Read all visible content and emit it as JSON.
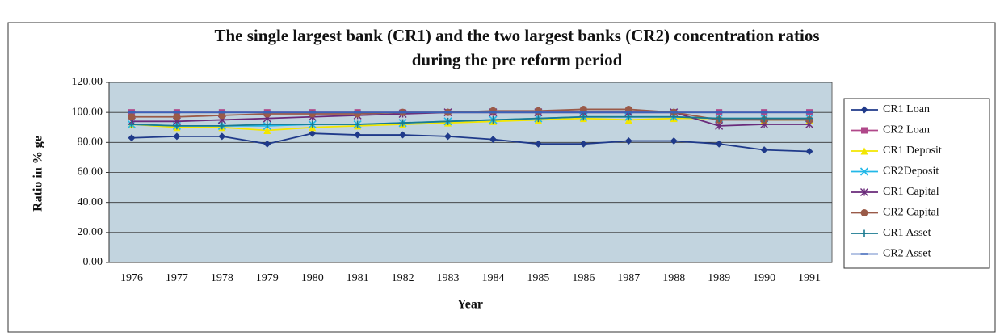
{
  "chart_data": {
    "type": "line",
    "title": "The single largest bank (CR1) and the two largest banks (CR2) concentration ratios",
    "subtitle": "during the pre reform period",
    "x_label": "Year",
    "y_label": "Ratio in % ge",
    "categories": [
      "1976",
      "1977",
      "1978",
      "1979",
      "1980",
      "1981",
      "1982",
      "1983",
      "1984",
      "1985",
      "1986",
      "1987",
      "1988",
      "1989",
      "1990",
      "1991"
    ],
    "ylim": [
      0,
      120
    ],
    "yticks": [
      {
        "value": 0,
        "label": "0.00"
      },
      {
        "value": 20,
        "label": "20.00"
      },
      {
        "value": 40,
        "label": "40.00"
      },
      {
        "value": 60,
        "label": "60.00"
      },
      {
        "value": 80,
        "label": "80.00"
      },
      {
        "value": 100,
        "label": "100.00"
      },
      {
        "value": 120,
        "label": "120.00"
      }
    ],
    "grid": true,
    "legend": "right",
    "series": [
      {
        "name": "CR1 Loan",
        "color": "#1f3a8a",
        "marker": "diamond",
        "values": [
          83,
          84,
          84,
          79,
          86,
          85,
          85,
          84,
          82,
          79,
          79,
          81,
          81,
          79,
          75,
          74
        ]
      },
      {
        "name": "CR2 Loan",
        "color": "#b0488a",
        "marker": "square",
        "values": [
          100,
          100,
          100,
          100,
          100,
          100,
          100,
          100,
          100,
          100,
          100,
          100,
          100,
          100,
          100,
          100
        ]
      },
      {
        "name": "CR1 Deposit",
        "color": "#f2e600",
        "marker": "triangle",
        "values": [
          92,
          90,
          90,
          88,
          90,
          91,
          92,
          93,
          94,
          95,
          96,
          95,
          96,
          96,
          95,
          95
        ]
      },
      {
        "name": "CR2Deposit",
        "color": "#22b8e8",
        "marker": "x",
        "values": [
          92,
          91,
          91,
          91,
          92,
          92,
          93,
          94,
          95,
          96,
          97,
          97,
          97,
          96,
          96,
          96
        ]
      },
      {
        "name": "CR1 Capital",
        "color": "#6a2a7a",
        "marker": "star",
        "values": [
          94,
          94,
          95,
          96,
          97,
          98,
          99,
          100,
          100,
          100,
          100,
          100,
          100,
          91,
          92,
          92
        ]
      },
      {
        "name": "CR2 Capital",
        "color": "#9a5a48",
        "marker": "circle",
        "values": [
          97,
          97,
          98,
          99,
          99,
          99,
          100,
          100,
          101,
          101,
          102,
          102,
          100,
          95,
          95,
          95
        ]
      },
      {
        "name": "CR1 Asset",
        "color": "#1a7a90",
        "marker": "plus",
        "values": [
          92,
          91,
          91,
          92,
          92,
          92,
          93,
          94,
          95,
          96,
          97,
          97,
          97,
          96,
          96,
          96
        ]
      },
      {
        "name": "CR2 Asset",
        "color": "#3a62b8",
        "marker": "dash",
        "values": [
          100,
          100,
          100,
          100,
          100,
          100,
          100,
          100,
          100,
          100,
          100,
          100,
          100,
          100,
          100,
          100
        ]
      }
    ]
  }
}
